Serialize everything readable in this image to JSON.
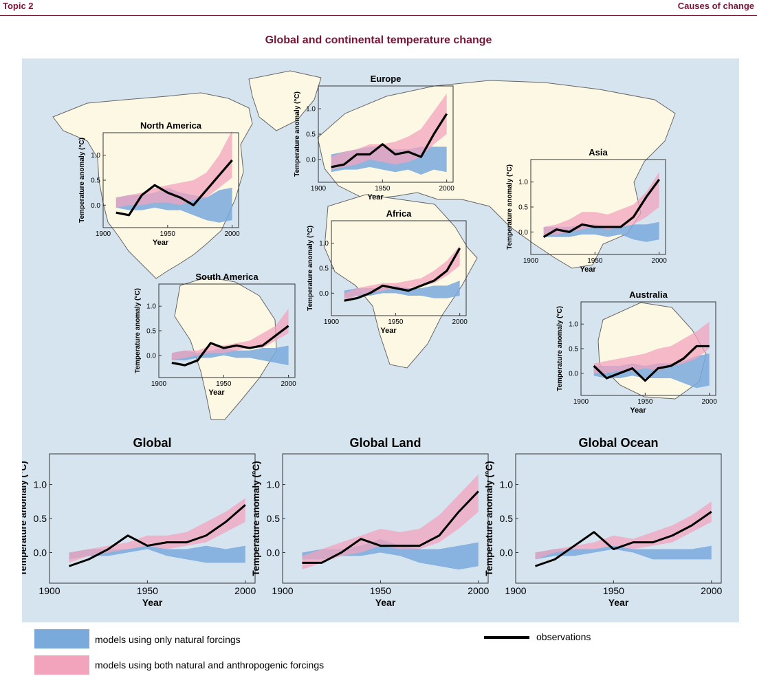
{
  "header": {
    "topic": "Topic 2",
    "section": "Causes of change"
  },
  "title": "Global and continental temperature change",
  "colors": {
    "natural": "#7aa9dc",
    "both": "#f2a4bd",
    "obs": "#000000",
    "panel_bg": "#d6e4ef",
    "land": "#fdf8e4"
  },
  "legend": {
    "natural": "models using only natural forcings",
    "both": "models using both natural and anthropogenic forcings",
    "obs": "observations"
  },
  "chart_data": [
    {
      "type": "area",
      "title": "Europe",
      "xlabel": "Year",
      "ylabel": "Temperature anomaly (°C)",
      "xlim": [
        1900,
        2005
      ],
      "ylim": [
        -0.45,
        1.45
      ],
      "xticks": [
        1900,
        1950,
        2000
      ],
      "yticks": [
        0.0,
        0.5,
        1.0
      ],
      "x": [
        1910,
        1920,
        1930,
        1940,
        1950,
        1960,
        1970,
        1980,
        1990,
        2000
      ],
      "natural_band": {
        "lower": [
          -0.25,
          -0.2,
          -0.2,
          -0.15,
          -0.2,
          -0.25,
          -0.2,
          -0.3,
          -0.2,
          -0.25
        ],
        "upper": [
          0.1,
          0.15,
          0.2,
          0.25,
          0.25,
          0.2,
          0.2,
          0.25,
          0.25,
          0.25
        ]
      },
      "both_band": {
        "lower": [
          -0.2,
          -0.15,
          -0.1,
          0.0,
          -0.05,
          -0.1,
          -0.05,
          0.05,
          0.3,
          0.5
        ],
        "upper": [
          0.05,
          0.15,
          0.2,
          0.3,
          0.3,
          0.35,
          0.45,
          0.6,
          0.95,
          1.3
        ]
      },
      "observations": [
        -0.15,
        -0.1,
        0.1,
        0.1,
        0.3,
        0.1,
        0.15,
        0.05,
        0.5,
        0.9
      ]
    },
    {
      "type": "area",
      "title": "North America",
      "xlabel": "Year",
      "ylabel": "Temperature anomaly (°C)",
      "xlim": [
        1900,
        2005
      ],
      "ylim": [
        -0.45,
        1.45
      ],
      "xticks": [
        1900,
        1950,
        2000
      ],
      "yticks": [
        0.0,
        0.5,
        1.0
      ],
      "x": [
        1910,
        1920,
        1930,
        1940,
        1950,
        1960,
        1970,
        1980,
        1990,
        2000
      ],
      "natural_band": {
        "lower": [
          -0.05,
          -0.1,
          -0.1,
          -0.05,
          -0.1,
          -0.1,
          -0.2,
          -0.3,
          -0.35,
          -0.3
        ],
        "upper": [
          0.15,
          0.2,
          0.2,
          0.25,
          0.35,
          0.25,
          0.2,
          0.15,
          0.3,
          0.35
        ]
      },
      "both_band": {
        "lower": [
          -0.05,
          0.0,
          0.0,
          0.05,
          0.05,
          0.0,
          0.1,
          0.15,
          0.35,
          0.55
        ],
        "upper": [
          0.15,
          0.2,
          0.25,
          0.35,
          0.4,
          0.45,
          0.5,
          0.65,
          1.0,
          1.5
        ]
      },
      "observations": [
        -0.15,
        -0.2,
        0.2,
        0.4,
        0.25,
        0.15,
        0.0,
        0.3,
        0.6,
        0.9
      ]
    },
    {
      "type": "area",
      "title": "Asia",
      "xlabel": "Year",
      "ylabel": "Temperature anomaly (°C)",
      "xlim": [
        1900,
        2005
      ],
      "ylim": [
        -0.45,
        1.45
      ],
      "xticks": [
        1900,
        1950,
        2000
      ],
      "yticks": [
        0.0,
        0.5,
        1.0
      ],
      "x": [
        1910,
        1920,
        1930,
        1940,
        1950,
        1960,
        1970,
        1980,
        1990,
        2000
      ],
      "natural_band": {
        "lower": [
          -0.1,
          -0.1,
          -0.1,
          -0.05,
          -0.05,
          -0.1,
          -0.05,
          -0.15,
          -0.2,
          -0.15
        ],
        "upper": [
          0.1,
          0.1,
          0.1,
          0.15,
          0.15,
          0.1,
          0.1,
          0.15,
          0.15,
          0.2
        ]
      },
      "both_band": {
        "lower": [
          -0.05,
          -0.05,
          0.0,
          0.05,
          0.1,
          0.05,
          0.1,
          0.15,
          0.3,
          0.5
        ],
        "upper": [
          0.1,
          0.15,
          0.25,
          0.4,
          0.4,
          0.35,
          0.45,
          0.55,
          0.8,
          1.2
        ]
      },
      "observations": [
        -0.1,
        0.05,
        0.0,
        0.15,
        0.1,
        0.1,
        0.1,
        0.3,
        0.7,
        1.05
      ]
    },
    {
      "type": "area",
      "title": "Africa",
      "xlabel": "Year",
      "ylabel": "Temperature anomaly (°C)",
      "xlim": [
        1900,
        2005
      ],
      "ylim": [
        -0.45,
        1.45
      ],
      "xticks": [
        1900,
        1950,
        2000
      ],
      "yticks": [
        0.0,
        0.5,
        1.0
      ],
      "x": [
        1910,
        1920,
        1930,
        1940,
        1950,
        1960,
        1970,
        1980,
        1990,
        2000
      ],
      "natural_band": {
        "lower": [
          -0.1,
          -0.05,
          -0.05,
          0.0,
          0.0,
          -0.05,
          -0.05,
          -0.1,
          -0.1,
          -0.05
        ],
        "upper": [
          0.05,
          0.1,
          0.1,
          0.1,
          0.15,
          0.1,
          0.1,
          0.15,
          0.15,
          0.25
        ]
      },
      "both_band": {
        "lower": [
          -0.15,
          -0.05,
          0.0,
          0.05,
          0.1,
          0.1,
          0.15,
          0.2,
          0.35,
          0.55
        ],
        "upper": [
          0.0,
          0.1,
          0.15,
          0.2,
          0.2,
          0.25,
          0.3,
          0.45,
          0.65,
          0.95
        ]
      },
      "observations": [
        -0.15,
        -0.1,
        0.0,
        0.15,
        0.1,
        0.05,
        0.15,
        0.25,
        0.45,
        0.9
      ]
    },
    {
      "type": "area",
      "title": "South America",
      "xlabel": "Year",
      "ylabel": "Temperature anomaly (°C)",
      "xlim": [
        1900,
        2005
      ],
      "ylim": [
        -0.45,
        1.45
      ],
      "xticks": [
        1900,
        1950,
        2000
      ],
      "yticks": [
        0.0,
        0.5,
        1.0
      ],
      "x": [
        1910,
        1920,
        1930,
        1940,
        1950,
        1960,
        1970,
        1980,
        1990,
        2000
      ],
      "natural_band": {
        "lower": [
          -0.1,
          -0.1,
          -0.05,
          -0.05,
          0.0,
          -0.05,
          -0.05,
          -0.1,
          -0.15,
          -0.2
        ],
        "upper": [
          0.05,
          0.1,
          0.05,
          0.1,
          0.15,
          0.1,
          0.1,
          0.15,
          0.15,
          0.2
        ]
      },
      "both_band": {
        "lower": [
          -0.1,
          -0.05,
          0.0,
          0.05,
          0.05,
          0.1,
          0.15,
          0.15,
          0.3,
          0.45
        ],
        "upper": [
          0.05,
          0.1,
          0.1,
          0.2,
          0.2,
          0.25,
          0.3,
          0.45,
          0.6,
          0.95
        ]
      },
      "observations": [
        -0.15,
        -0.2,
        -0.1,
        0.25,
        0.15,
        0.2,
        0.15,
        0.2,
        0.4,
        0.6
      ]
    },
    {
      "type": "area",
      "title": "Australia",
      "xlabel": "Year",
      "ylabel": "Temperature anomaly (°C)",
      "xlim": [
        1900,
        2005
      ],
      "ylim": [
        -0.45,
        1.45
      ],
      "xticks": [
        1900,
        1950,
        2000
      ],
      "yticks": [
        0.0,
        0.5,
        1.0
      ],
      "x": [
        1910,
        1920,
        1930,
        1940,
        1950,
        1960,
        1970,
        1980,
        1990,
        2000
      ],
      "natural_band": {
        "lower": [
          -0.05,
          -0.1,
          -0.1,
          -0.05,
          -0.1,
          -0.1,
          -0.1,
          -0.2,
          -0.3,
          -0.25
        ],
        "upper": [
          0.15,
          0.15,
          0.15,
          0.2,
          0.15,
          0.2,
          0.2,
          0.25,
          0.35,
          0.4
        ]
      },
      "both_band": {
        "lower": [
          0.0,
          0.0,
          0.05,
          0.05,
          0.1,
          0.05,
          0.15,
          0.2,
          0.3,
          0.5
        ],
        "upper": [
          0.2,
          0.25,
          0.3,
          0.35,
          0.4,
          0.5,
          0.55,
          0.7,
          0.85,
          1.05
        ]
      },
      "observations": [
        0.15,
        -0.1,
        0.0,
        0.1,
        -0.15,
        0.1,
        0.15,
        0.3,
        0.55,
        0.55
      ]
    },
    {
      "type": "area",
      "title": "Global",
      "xlabel": "Year",
      "ylabel": "Temperature anomaly (°C)",
      "xlim": [
        1900,
        2005
      ],
      "ylim": [
        -0.45,
        1.45
      ],
      "xticks": [
        1900,
        1950,
        2000
      ],
      "yticks": [
        0.0,
        0.5,
        1.0
      ],
      "x": [
        1910,
        1920,
        1930,
        1940,
        1950,
        1960,
        1970,
        1980,
        1990,
        2000
      ],
      "natural_band": {
        "lower": [
          -0.1,
          -0.05,
          -0.05,
          0.0,
          0.05,
          -0.05,
          -0.1,
          -0.15,
          -0.15,
          -0.15
        ],
        "upper": [
          0.0,
          0.05,
          0.05,
          0.05,
          0.1,
          0.05,
          0.05,
          0.1,
          0.05,
          0.1
        ]
      },
      "both_band": {
        "lower": [
          -0.15,
          -0.05,
          0.0,
          0.05,
          0.1,
          0.05,
          0.1,
          0.15,
          0.3,
          0.45
        ],
        "upper": [
          0.0,
          0.05,
          0.1,
          0.15,
          0.25,
          0.25,
          0.3,
          0.45,
          0.6,
          0.8
        ]
      },
      "observations": [
        -0.2,
        -0.1,
        0.05,
        0.25,
        0.1,
        0.15,
        0.15,
        0.25,
        0.45,
        0.7
      ]
    },
    {
      "type": "area",
      "title": "Global Land",
      "xlabel": "Year",
      "ylabel": "Temperature anomaly (°C)",
      "xlim": [
        1900,
        2005
      ],
      "ylim": [
        -0.45,
        1.45
      ],
      "xticks": [
        1900,
        1950,
        2000
      ],
      "yticks": [
        0.0,
        0.5,
        1.0
      ],
      "x": [
        1910,
        1920,
        1930,
        1940,
        1950,
        1960,
        1970,
        1980,
        1990,
        2000
      ],
      "natural_band": {
        "lower": [
          -0.1,
          -0.1,
          -0.05,
          -0.05,
          0.0,
          -0.05,
          -0.15,
          -0.2,
          -0.25,
          -0.2
        ],
        "upper": [
          0.0,
          0.05,
          0.05,
          0.1,
          0.2,
          0.1,
          0.05,
          0.05,
          0.1,
          0.15
        ]
      },
      "both_band": {
        "lower": [
          -0.25,
          -0.15,
          -0.05,
          0.0,
          0.1,
          0.05,
          0.05,
          0.15,
          0.35,
          0.6
        ],
        "upper": [
          -0.05,
          0.05,
          0.15,
          0.25,
          0.35,
          0.3,
          0.35,
          0.55,
          0.85,
          1.15
        ]
      },
      "observations": [
        -0.15,
        -0.15,
        0.0,
        0.2,
        0.1,
        0.1,
        0.1,
        0.25,
        0.6,
        0.9
      ]
    },
    {
      "type": "area",
      "title": "Global Ocean",
      "xlabel": "Year",
      "ylabel": "Temperature anomaly (°C)",
      "xlim": [
        1900,
        2005
      ],
      "ylim": [
        -0.45,
        1.45
      ],
      "xticks": [
        1900,
        1950,
        2000
      ],
      "yticks": [
        0.0,
        0.5,
        1.0
      ],
      "x": [
        1910,
        1920,
        1930,
        1940,
        1950,
        1960,
        1970,
        1980,
        1990,
        2000
      ],
      "natural_band": {
        "lower": [
          -0.1,
          -0.05,
          -0.05,
          0.0,
          0.05,
          0.0,
          -0.1,
          -0.1,
          -0.1,
          -0.1
        ],
        "upper": [
          0.0,
          0.05,
          0.05,
          0.05,
          0.1,
          0.05,
          0.05,
          0.05,
          0.05,
          0.1
        ]
      },
      "both_band": {
        "lower": [
          -0.1,
          0.0,
          0.05,
          0.05,
          0.1,
          0.05,
          0.1,
          0.15,
          0.3,
          0.45
        ],
        "upper": [
          0.0,
          0.05,
          0.1,
          0.15,
          0.25,
          0.2,
          0.3,
          0.4,
          0.55,
          0.75
        ]
      },
      "observations": [
        -0.2,
        -0.1,
        0.1,
        0.3,
        0.05,
        0.15,
        0.15,
        0.25,
        0.4,
        0.6
      ]
    }
  ]
}
